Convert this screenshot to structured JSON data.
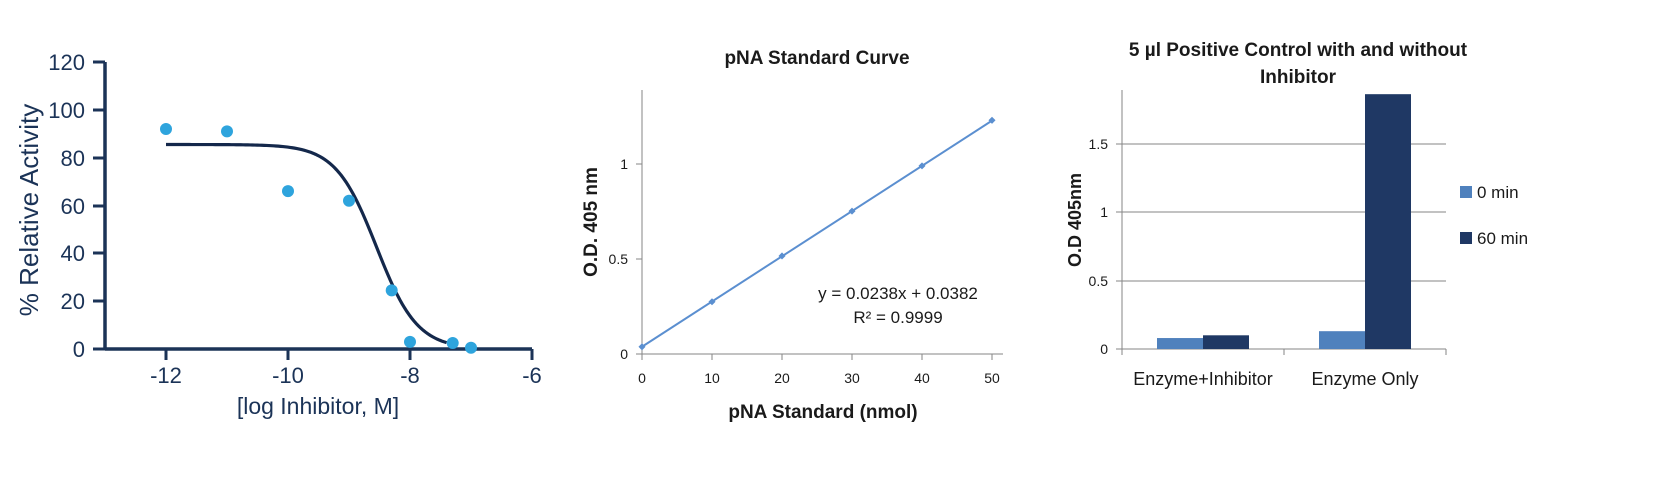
{
  "chart_data": [
    {
      "type": "scatter",
      "title": "",
      "xlabel": "[log Inhibitor, M]",
      "ylabel": "% Relative Activity",
      "xlim": [
        -13,
        -6
      ],
      "ylim": [
        0,
        120
      ],
      "xticks": [
        "-12",
        "-10",
        "-8",
        "-6"
      ],
      "yticks": [
        "0",
        "20",
        "40",
        "60",
        "80",
        "100",
        "120"
      ],
      "series": [
        {
          "points": [
            [
              -12,
              92
            ],
            [
              -11,
              91
            ],
            [
              -10,
              66
            ],
            [
              -9,
              62
            ],
            [
              -8.3,
              24.5
            ],
            [
              -8,
              3
            ],
            [
              -7.3,
              2.5
            ],
            [
              -7,
              0.5
            ]
          ],
          "color": "#2ea4dd"
        }
      ],
      "fit_curve": {
        "top": 85.5,
        "bottom": 0,
        "log_ic50": -8.55,
        "hill": 1.3,
        "x_range": [
          -12,
          -7.4
        ],
        "color": "#14284b"
      },
      "grid": false,
      "colors": {
        "axis": "#1b3357"
      }
    },
    {
      "type": "line",
      "title": "pNA Standard Curve",
      "xlabel": "pNA Standard (nmol)",
      "ylabel": "O.D. 405 nm",
      "xlim": [
        0,
        50
      ],
      "ylim": [
        0,
        1.4
      ],
      "xticks": [
        "0",
        "10",
        "20",
        "30",
        "40",
        "50"
      ],
      "yticks": [
        "0",
        "0.5",
        "1"
      ],
      "series": [
        {
          "x": [
            0,
            10,
            20,
            30,
            40,
            50
          ],
          "y": [
            0.038,
            0.275,
            0.516,
            0.752,
            0.99,
            1.23
          ],
          "color": "#5b8fd0"
        }
      ],
      "trendline": {
        "slope": 0.0238,
        "intercept": 0.0382
      },
      "annotations": [
        "y = 0.0238x + 0.0382",
        "R² = 0.9999"
      ],
      "grid": false
    },
    {
      "type": "bar",
      "title_lines": [
        "5 µl Positive Control with and without",
        "Inhibitor"
      ],
      "xlabel": "",
      "ylabel": "O.D 405nm",
      "categories": [
        "Enzyme+Inhibitor",
        "Enzyme Only"
      ],
      "ylim": [
        0,
        1.9
      ],
      "yticks": [
        "0",
        "0.5",
        "1",
        "1.5"
      ],
      "series": [
        {
          "name": "0 min",
          "values": [
            0.08,
            0.13
          ],
          "color": "#4f81bd"
        },
        {
          "name": "60 min",
          "values": [
            0.1,
            1.86
          ],
          "color": "#1f3864"
        }
      ],
      "legend_position": "right",
      "grid": true,
      "colors": {
        "grid": "#868686"
      }
    }
  ]
}
